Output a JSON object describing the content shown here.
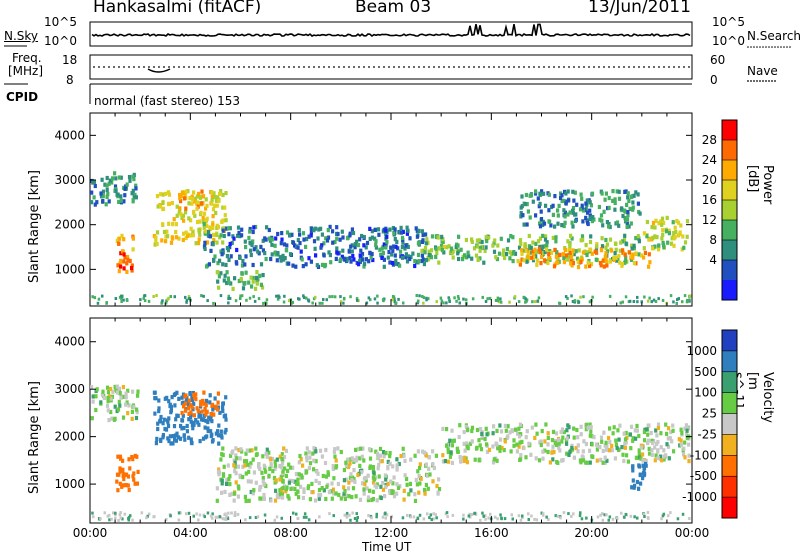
{
  "header": {
    "station": "Hankasalmi (fitACF)",
    "beam": "Beam 03",
    "date": "13/Jun/2011"
  },
  "info_panels": {
    "nsky_label": "N.Sky",
    "nsky_top": "10^5",
    "nsky_bottom": "10^0",
    "nsky_right_top": "10^5",
    "nsky_right_bottom": "10^0",
    "nsearch_label": "N.Search",
    "freq_label_line1": "Freq.",
    "freq_label_line2": "[MHz]",
    "freq_top": "18",
    "freq_bottom": "8",
    "nave_top": "60",
    "nave_bottom": "0",
    "nave_label": "Nave",
    "cpid_label": "CPID",
    "cpid_value": "normal (fast stereo) 153"
  },
  "chart_data": [
    {
      "type": "heatmap",
      "panel": "power",
      "ylabel": "Slant Range [km]",
      "y_ticks": [
        "4000",
        "3000",
        "2000",
        "1000"
      ],
      "y_tick_values": [
        4000,
        3000,
        2000,
        1000
      ],
      "ylim": [
        180,
        4500
      ],
      "x_ticks": [
        "00:00",
        "04:00",
        "08:00",
        "12:00",
        "16:00",
        "20:00",
        "00:00"
      ],
      "xlim_hours": [
        0,
        24
      ],
      "colorbar_label": "Power [dB]",
      "colorbar_ticks": [
        "28",
        "24",
        "20",
        "16",
        "12",
        "8",
        "4"
      ],
      "colorbar_colors": [
        "#ff0000",
        "#ff6a00",
        "#ffaa00",
        "#e0d020",
        "#a8d030",
        "#44b060",
        "#2f8f7f",
        "#2050c0",
        "#1a1aff"
      ],
      "echo_regions": [
        {
          "t0": 0.0,
          "t1": 2.0,
          "r0": 2400,
          "r1": 3200,
          "level": 8
        },
        {
          "t0": 1.0,
          "t1": 1.8,
          "r0": 850,
          "r1": 1800,
          "level": 24
        },
        {
          "t0": 2.5,
          "t1": 5.5,
          "r0": 1500,
          "r1": 2800,
          "level": 18
        },
        {
          "t0": 3.5,
          "t1": 5.0,
          "r0": 2300,
          "r1": 2800,
          "level": 22
        },
        {
          "t0": 5.0,
          "t1": 7.0,
          "r0": 500,
          "r1": 1000,
          "level": 12
        },
        {
          "t0": 4.5,
          "t1": 13.5,
          "r0": 1000,
          "r1": 2000,
          "level": 6
        },
        {
          "t0": 13.0,
          "t1": 22.0,
          "r0": 1100,
          "r1": 1800,
          "level": 12
        },
        {
          "t0": 17.0,
          "t1": 22.5,
          "r0": 1000,
          "r1": 1500,
          "level": 22
        },
        {
          "t0": 17.0,
          "t1": 22.0,
          "r0": 1900,
          "r1": 2800,
          "level": 8
        },
        {
          "t0": 22.0,
          "t1": 24.0,
          "r0": 1400,
          "r1": 2200,
          "level": 16
        }
      ]
    },
    {
      "type": "heatmap",
      "panel": "velocity",
      "ylabel": "Slant Range [km]",
      "y_ticks": [
        "4000",
        "3000",
        "2000",
        "1000"
      ],
      "y_tick_values": [
        4000,
        3000,
        2000,
        1000
      ],
      "ylim": [
        180,
        4500
      ],
      "x_ticks": [
        "00:00",
        "04:00",
        "08:00",
        "12:00",
        "16:00",
        "20:00",
        "00:00"
      ],
      "xlabel": "Time UT",
      "xlim_hours": [
        0,
        24
      ],
      "colorbar_label": "Velocity [m s^-1]",
      "colorbar_ticks": [
        "1000",
        "500",
        "100",
        "25",
        "-25",
        "-100",
        "-500",
        "-1000"
      ],
      "colorbar_colors": [
        "#2040c0",
        "#2f7fbf",
        "#3aa070",
        "#66cc44",
        "#c8c8c8",
        "#f0b020",
        "#ff7000",
        "#ff3000",
        "#ff0000"
      ],
      "echo_regions": [
        {
          "t0": 0.0,
          "t1": 2.0,
          "r0": 2300,
          "r1": 3100,
          "level": 0
        },
        {
          "t0": 1.0,
          "t1": 2.0,
          "r0": 800,
          "r1": 1700,
          "level": -300
        },
        {
          "t0": 2.5,
          "t1": 5.5,
          "r0": 1800,
          "r1": 3000,
          "level": 200
        },
        {
          "t0": 3.5,
          "t1": 5.2,
          "r0": 2400,
          "r1": 3000,
          "level": -300
        },
        {
          "t0": 5.0,
          "t1": 14.0,
          "r0": 600,
          "r1": 1800,
          "level": 0
        },
        {
          "t0": 14.0,
          "t1": 24.0,
          "r0": 1400,
          "r1": 2300,
          "level": 0
        },
        {
          "t0": 21.5,
          "t1": 22.3,
          "r0": 800,
          "r1": 1500,
          "level": 300
        }
      ]
    }
  ]
}
